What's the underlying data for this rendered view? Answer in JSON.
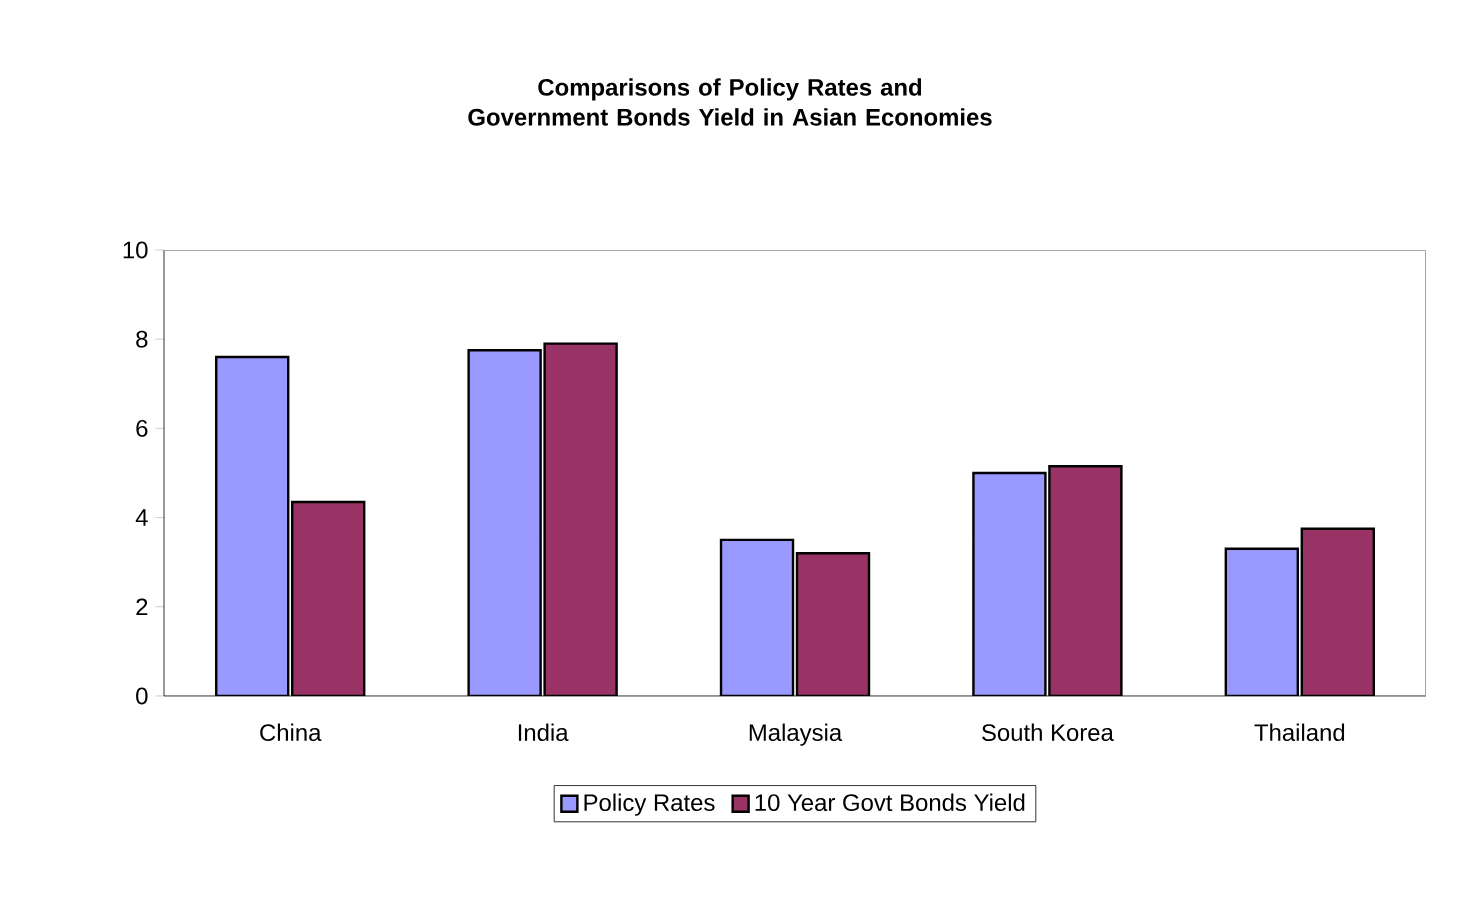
{
  "chart_data": {
    "type": "bar",
    "title": "Comparisons of Policy Rates and Government Bonds Yield in Asian Economies",
    "categories": [
      "China",
      "India",
      "Malaysia",
      "South Korea",
      "Thailand"
    ],
    "series": [
      {
        "name": "Policy Rates",
        "color": "#9999ff",
        "values": [
          7.6,
          7.75,
          3.5,
          5.0,
          3.3
        ]
      },
      {
        "name": "10 Year Govt Bonds Yield",
        "color": "#993366",
        "values": [
          4.35,
          7.9,
          3.2,
          5.15,
          3.75
        ]
      }
    ],
    "ylim": [
      0,
      10
    ],
    "yticks": [
      0,
      2,
      4,
      6,
      8,
      10
    ],
    "grid": false,
    "legend": "bottom"
  }
}
